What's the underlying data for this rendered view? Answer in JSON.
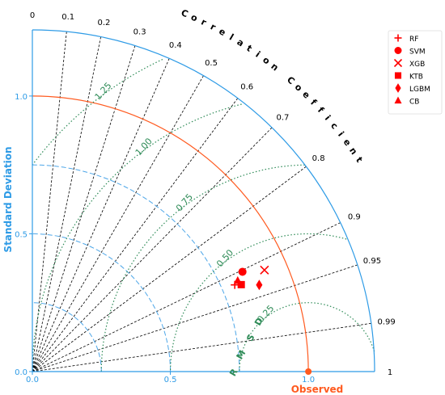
{
  "chart_data": {
    "type": "scatter",
    "subtype": "taylor-diagram",
    "ylabel": "Standard Deviation",
    "xlabel": "Observed",
    "arc_label": "Correlation Coefficient",
    "rms_label": "RMSD",
    "std_ticks": [
      "0.0",
      "0.5",
      "1.0"
    ],
    "std_tick_values": [
      0,
      0.5,
      1.0
    ],
    "std_max": 1.24,
    "correlation_ticks": [
      0,
      0.1,
      0.2,
      0.3,
      0.4,
      0.5,
      0.6,
      0.7,
      0.8,
      0.9,
      0.95,
      0.99,
      1
    ],
    "correlation_tick_labels": [
      "0",
      "0.1",
      "0.2",
      "0.3",
      "0.4",
      "0.5",
      "0.6",
      "0.7",
      "0.8",
      "0.9",
      "0.95",
      "0.99",
      "1"
    ],
    "std_reference_arcs": [
      0.25,
      0.5,
      0.75,
      1.0
    ],
    "rms_contours": [
      0.25,
      0.5,
      0.75,
      1.0,
      1.25
    ],
    "rms_contour_labels": [
      "0.25",
      "0.50",
      "0.75",
      "1.00",
      "1.25"
    ],
    "observed": {
      "std": 1.0,
      "correlation": 1.0
    },
    "series": [
      {
        "name": "RF",
        "marker": "plus",
        "std": 0.798,
        "correlation": 0.919
      },
      {
        "name": "SVM",
        "marker": "circle",
        "std": 0.843,
        "correlation": 0.903
      },
      {
        "name": "XGB",
        "marker": "x",
        "std": 0.918,
        "correlation": 0.916
      },
      {
        "name": "KTB",
        "marker": "square",
        "std": 0.82,
        "correlation": 0.923
      },
      {
        "name": "LGBM",
        "marker": "diamond",
        "std": 0.88,
        "correlation": 0.934
      },
      {
        "name": "CB",
        "marker": "triangle",
        "std": 0.814,
        "correlation": 0.914
      }
    ],
    "legend_position": "top-right",
    "colors": {
      "axis": "#2e9be6",
      "std_arc": "#4da6e8",
      "observed_arc": "#ff5a1f",
      "observed_point": "#ff5a1f",
      "rms": "#2e8b57",
      "markers": "#ff0000",
      "correlation_lines": "#000000"
    }
  }
}
